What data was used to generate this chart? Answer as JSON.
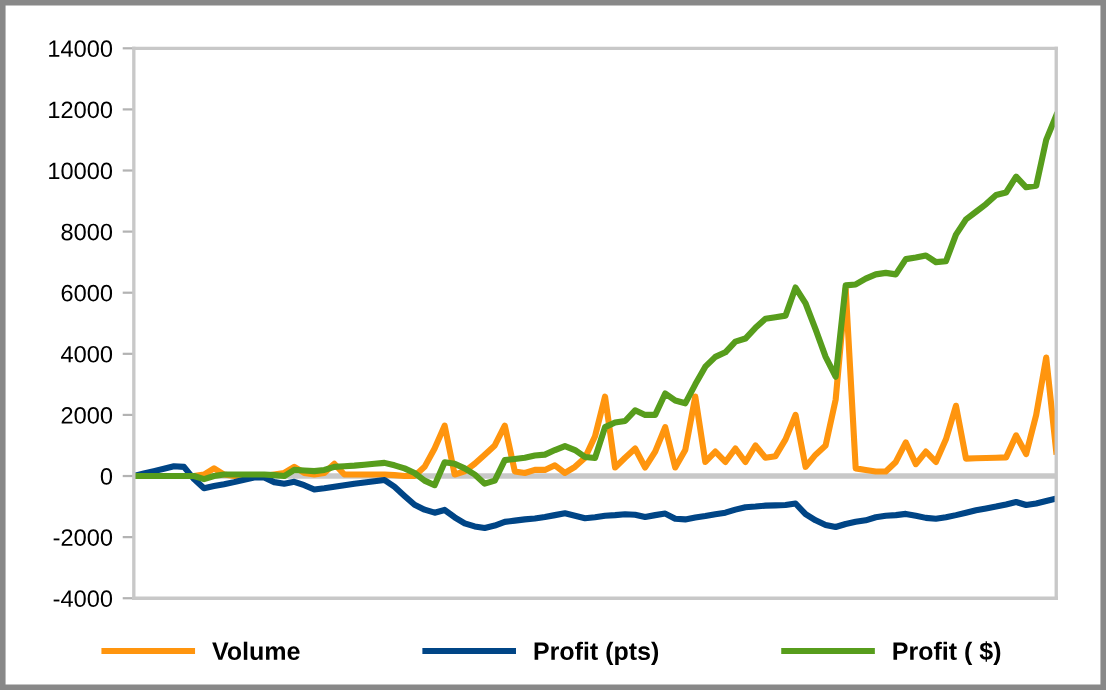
{
  "chart_data": {
    "type": "line",
    "categories": [
      null,
      null,
      null,
      null,
      null,
      null,
      null,
      null,
      null,
      null,
      null,
      null,
      null,
      null,
      null,
      null,
      null,
      null,
      null,
      null,
      null,
      null,
      null,
      null,
      null,
      null,
      null,
      null,
      null,
      null,
      null,
      null,
      null,
      null,
      null,
      null,
      null,
      null,
      null,
      null,
      null,
      null,
      null,
      null,
      null,
      null,
      null,
      null,
      null,
      null,
      null,
      null,
      null,
      null,
      null,
      null,
      null,
      null,
      null,
      null,
      null,
      null,
      null,
      null,
      null,
      null,
      null,
      null,
      null,
      null,
      null,
      null,
      null,
      null,
      null,
      null,
      null,
      null,
      null,
      null,
      null,
      null,
      null,
      null,
      null,
      null,
      null,
      null,
      null,
      null,
      null,
      null,
      null
    ],
    "series": [
      {
        "name": "Volume",
        "color": "#ff950e",
        "values": [
          null,
          null,
          null,
          null,
          null,
          0,
          0,
          50,
          250,
          50,
          0,
          0,
          0,
          0,
          50,
          100,
          300,
          100,
          50,
          100,
          400,
          50,
          50,
          50,
          50,
          50,
          30,
          0,
          0,
          300,
          900,
          1650,
          50,
          150,
          400,
          700,
          1000,
          1650,
          150,
          100,
          200,
          200,
          350,
          100,
          300,
          600,
          1300,
          2600,
          280,
          600,
          900,
          280,
          800,
          1600,
          280,
          850,
          2600,
          460,
          800,
          460,
          900,
          460,
          1000,
          600,
          650,
          1200,
          2000,
          300,
          700,
          1000,
          2500,
          6130,
          250,
          200,
          150,
          150,
          460,
          1100,
          390,
          800,
          460,
          1200,
          2300,
          570,
          580,
          590,
          600,
          610,
          1330,
          720,
          2000,
          3880,
          800
        ]
      },
      {
        "name": "Profit (pts)",
        "color": "#004586",
        "values": [
          0,
          80,
          160,
          240,
          320,
          300,
          -100,
          -400,
          -330,
          -270,
          -200,
          -120,
          -50,
          -50,
          -200,
          -250,
          -190,
          -300,
          -440,
          -400,
          -350,
          -300,
          -250,
          -210,
          -170,
          -130,
          -350,
          -650,
          -940,
          -1100,
          -1200,
          -1110,
          -1350,
          -1550,
          -1650,
          -1700,
          -1620,
          -1500,
          -1460,
          -1420,
          -1390,
          -1340,
          -1280,
          -1220,
          -1300,
          -1380,
          -1350,
          -1300,
          -1280,
          -1250,
          -1270,
          -1340,
          -1280,
          -1230,
          -1400,
          -1420,
          -1360,
          -1310,
          -1250,
          -1200,
          -1100,
          -1020,
          -1000,
          -970,
          -960,
          -950,
          -900,
          -1250,
          -1450,
          -1600,
          -1670,
          -1570,
          -1500,
          -1450,
          -1350,
          -1300,
          -1280,
          -1240,
          -1300,
          -1370,
          -1400,
          -1350,
          -1280,
          -1200,
          -1120,
          -1060,
          -1000,
          -930,
          -850,
          -950,
          -900,
          -820,
          -740
        ]
      },
      {
        "name": "Profit ( $)",
        "color": "#579d1c",
        "values": [
          0,
          0,
          0,
          0,
          0,
          0,
          0,
          -100,
          0,
          50,
          50,
          50,
          50,
          50,
          30,
          0,
          200,
          180,
          160,
          200,
          300,
          320,
          340,
          370,
          400,
          430,
          350,
          250,
          100,
          -150,
          -300,
          450,
          400,
          250,
          50,
          -250,
          -150,
          520,
          560,
          600,
          670,
          700,
          850,
          980,
          850,
          620,
          590,
          1600,
          1750,
          1800,
          2150,
          2000,
          2000,
          2700,
          2470,
          2380,
          3000,
          3580,
          3900,
          4050,
          4400,
          4500,
          4850,
          5150,
          5200,
          5250,
          6170,
          5650,
          4800,
          3900,
          3250,
          6240,
          6270,
          6460,
          6600,
          6650,
          6600,
          7100,
          7150,
          7220,
          7000,
          7030,
          7900,
          8400,
          8650,
          8900,
          9200,
          9280,
          9800,
          9450,
          9500,
          11000,
          11800
        ]
      }
    ],
    "ylim": [
      -4000,
      14000
    ],
    "yticks": [
      -4000,
      -2000,
      0,
      2000,
      4000,
      6000,
      8000,
      10000,
      12000,
      14000
    ],
    "ref_lines": [
      {
        "axis": "y",
        "value": 0,
        "color": "#c8c8c8"
      }
    ],
    "tick_labels": "y",
    "grid": false,
    "legend": "bottom",
    "marker": "none",
    "line_style": "solid"
  }
}
